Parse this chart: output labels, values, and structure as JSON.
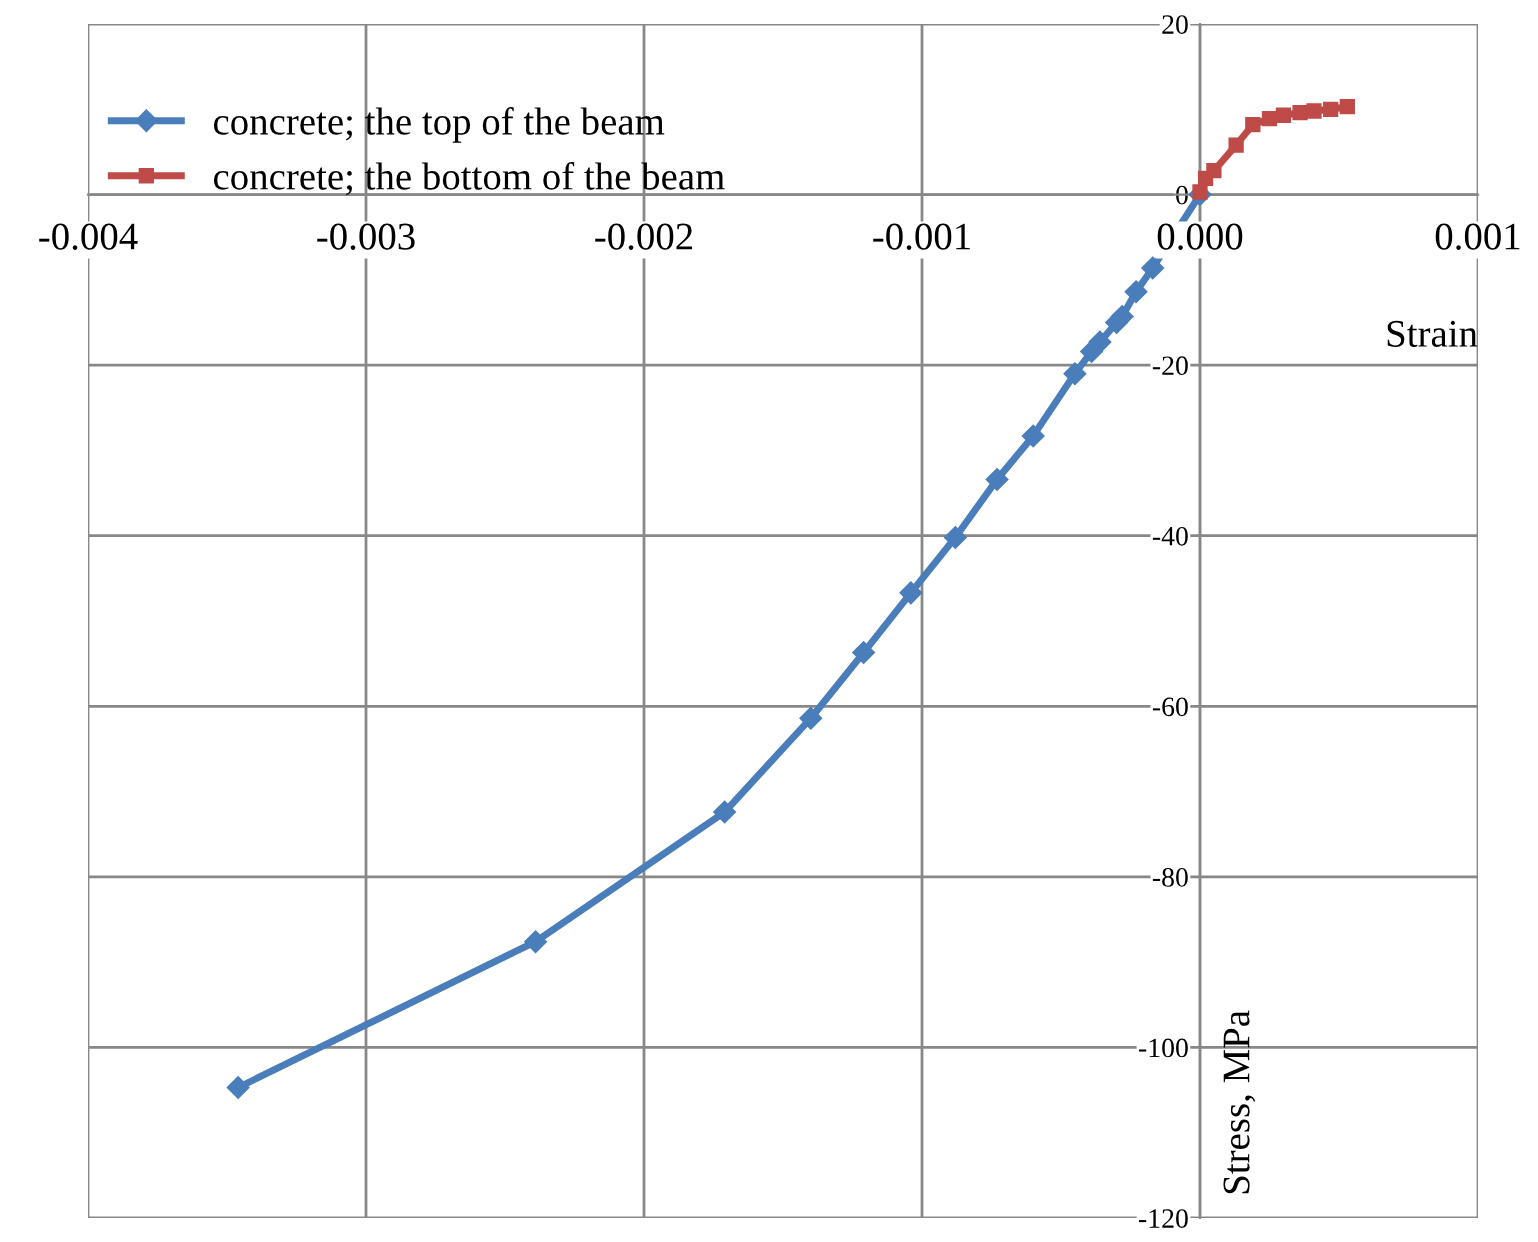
{
  "chart_data": {
    "type": "line",
    "xlabel": "Strain",
    "ylabel": "Stress, MPa",
    "xlim": [
      -0.004,
      0.001
    ],
    "ylim": [
      -120,
      20
    ],
    "xticks": [
      {
        "value": -0.004,
        "label": "-0.004"
      },
      {
        "value": -0.003,
        "label": "-0.003"
      },
      {
        "value": -0.002,
        "label": "-0.002"
      },
      {
        "value": -0.001,
        "label": "-0.001"
      },
      {
        "value": 0,
        "label": "0.000"
      },
      {
        "value": 0.001,
        "label": "0.001"
      }
    ],
    "yticks": [
      {
        "value": -120,
        "label": "-120"
      },
      {
        "value": -100,
        "label": "-100"
      },
      {
        "value": -80,
        "label": "-80"
      },
      {
        "value": -60,
        "label": "-60"
      },
      {
        "value": -40,
        "label": "-40"
      },
      {
        "value": -20,
        "label": "-20"
      },
      0,
      20
    ],
    "grid": true,
    "legend": "top left",
    "series": [
      {
        "name": "concrete; the top of the beam",
        "color": "#4a7ebb",
        "marker": "diamond",
        "x": [
          -0.00346,
          -0.00239,
          -0.00171,
          -0.0014,
          -0.00121,
          -0.00104,
          -0.00088,
          -0.00073,
          -0.0006,
          -0.00045,
          -0.00039,
          -0.00036,
          -0.0003,
          -0.00028,
          -0.00023,
          -0.00017,
          0
        ],
        "values": [
          -104.7,
          -87.6,
          -72.4,
          -61.4,
          -53.7,
          -46.7,
          -40.2,
          -33.4,
          -28.3,
          -21,
          -18.4,
          -17.3,
          -15,
          -14.3,
          -11.4,
          -8.6,
          0
        ]
      },
      {
        "name": "concrete; the bottom of the beam",
        "color": "#be4b48",
        "marker": "square",
        "x": [
          0,
          2e-05,
          5e-05,
          0.00013,
          0.00019,
          0.00025,
          0.0003,
          0.00036,
          0.00041,
          0.00047,
          0.00053
        ],
        "values": [
          0.3,
          1.9,
          2.8,
          5.8,
          8.2,
          8.9,
          9.3,
          9.6,
          9.8,
          10,
          10.3
        ]
      }
    ]
  }
}
